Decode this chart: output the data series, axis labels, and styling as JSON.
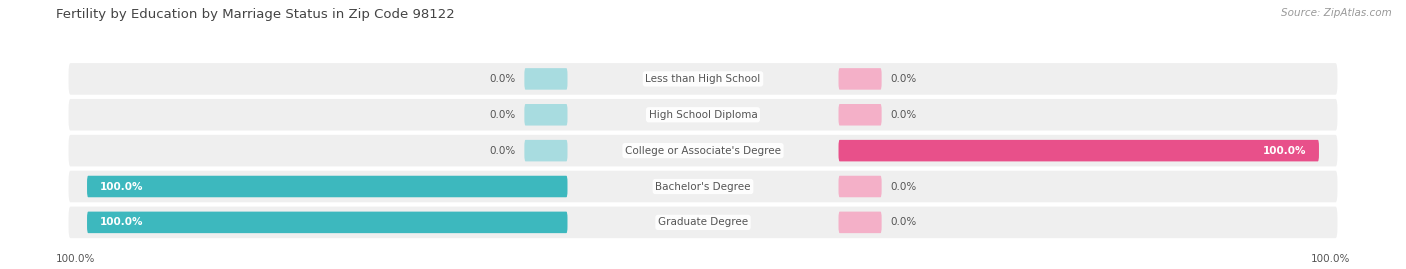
{
  "title": "Fertility by Education by Marriage Status in Zip Code 98122",
  "source": "Source: ZipAtlas.com",
  "categories": [
    "Less than High School",
    "High School Diploma",
    "College or Associate's Degree",
    "Bachelor's Degree",
    "Graduate Degree"
  ],
  "married": [
    0.0,
    0.0,
    0.0,
    100.0,
    100.0
  ],
  "unmarried": [
    0.0,
    0.0,
    100.0,
    0.0,
    0.0
  ],
  "married_color_full": "#3db8be",
  "married_color_stub": "#a8dce0",
  "unmarried_color_full": "#e8508a",
  "unmarried_color_stub": "#f4b0c8",
  "bg_row_color": "#efefef",
  "title_color": "#444444",
  "label_color": "#555555",
  "legend_married_color": "#3db8be",
  "legend_unmarried_color": "#f4b0c8",
  "axis_label_left": "100.0%",
  "axis_label_right": "100.0%",
  "figsize": [
    14.06,
    2.69
  ],
  "dpi": 100
}
